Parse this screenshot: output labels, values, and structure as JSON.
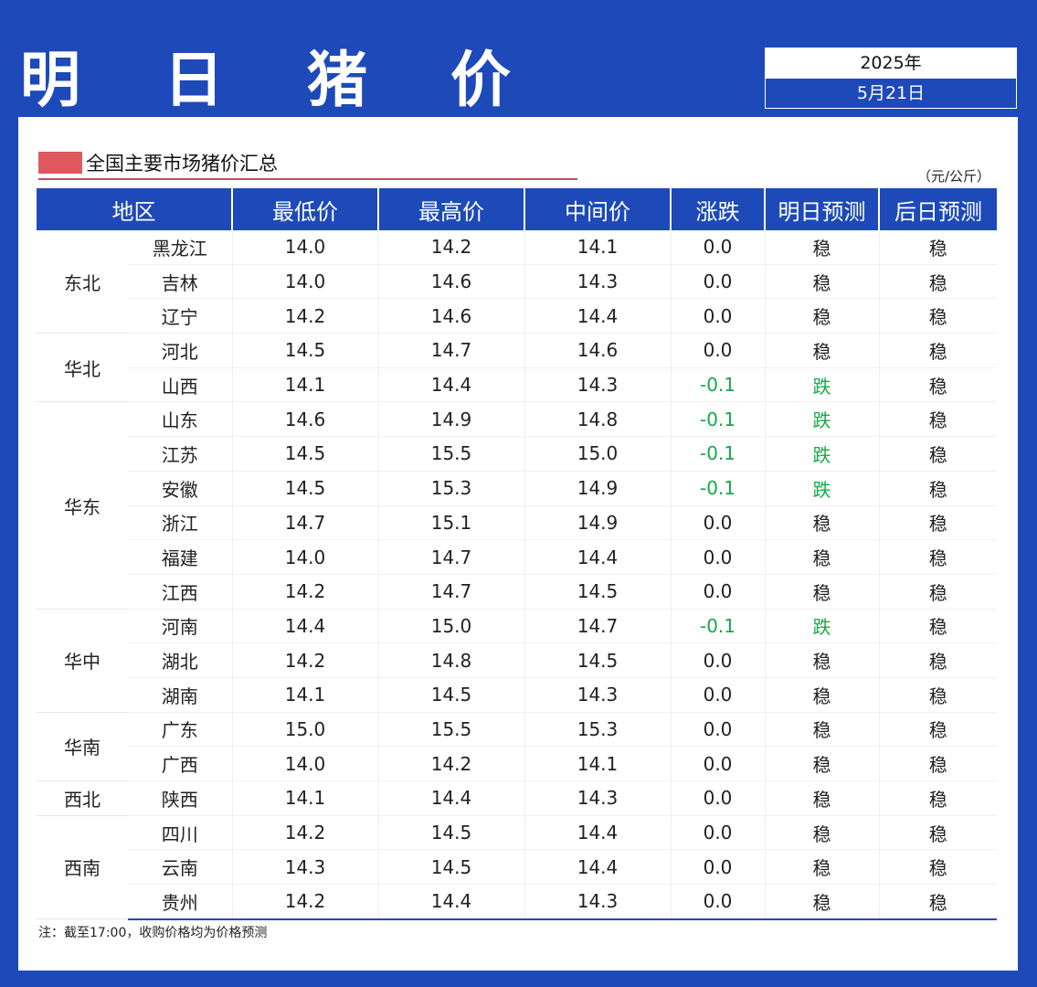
{
  "header": {
    "title": "明 日 猪 价",
    "year": "2025年",
    "date": "5月21日"
  },
  "section": {
    "legend_label": "全国主要市场猪价汇总",
    "unit": "（元/公斤）"
  },
  "colors": {
    "brand_blue": "#1d4ab8",
    "legend_red": "#e0585f",
    "down_green": "#18a84a"
  },
  "table": {
    "headers": {
      "region": "地区",
      "min": "最低价",
      "max": "最高价",
      "mid": "中间价",
      "change": "涨跌",
      "tomorrow": "明日预测",
      "day_after": "后日预测"
    },
    "regions": [
      {
        "name": "东北",
        "rows": [
          {
            "province": "黑龙江",
            "min": "14.0",
            "max": "14.2",
            "mid": "14.1",
            "change": "0.0",
            "tomorrow": "稳",
            "day_after": "稳"
          },
          {
            "province": "吉林",
            "min": "14.0",
            "max": "14.6",
            "mid": "14.3",
            "change": "0.0",
            "tomorrow": "稳",
            "day_after": "稳"
          },
          {
            "province": "辽宁",
            "min": "14.2",
            "max": "14.6",
            "mid": "14.4",
            "change": "0.0",
            "tomorrow": "稳",
            "day_after": "稳"
          }
        ]
      },
      {
        "name": "华北",
        "rows": [
          {
            "province": "河北",
            "min": "14.5",
            "max": "14.7",
            "mid": "14.6",
            "change": "0.0",
            "tomorrow": "稳",
            "day_after": "稳"
          },
          {
            "province": "山西",
            "min": "14.1",
            "max": "14.4",
            "mid": "14.3",
            "change": "-0.1",
            "tomorrow": "跌",
            "day_after": "稳"
          }
        ]
      },
      {
        "name": "华东",
        "rows": [
          {
            "province": "山东",
            "min": "14.6",
            "max": "14.9",
            "mid": "14.8",
            "change": "-0.1",
            "tomorrow": "跌",
            "day_after": "稳"
          },
          {
            "province": "江苏",
            "min": "14.5",
            "max": "15.5",
            "mid": "15.0",
            "change": "-0.1",
            "tomorrow": "跌",
            "day_after": "稳"
          },
          {
            "province": "安徽",
            "min": "14.5",
            "max": "15.3",
            "mid": "14.9",
            "change": "-0.1",
            "tomorrow": "跌",
            "day_after": "稳"
          },
          {
            "province": "浙江",
            "min": "14.7",
            "max": "15.1",
            "mid": "14.9",
            "change": "0.0",
            "tomorrow": "稳",
            "day_after": "稳"
          },
          {
            "province": "福建",
            "min": "14.0",
            "max": "14.7",
            "mid": "14.4",
            "change": "0.0",
            "tomorrow": "稳",
            "day_after": "稳"
          },
          {
            "province": "江西",
            "min": "14.2",
            "max": "14.7",
            "mid": "14.5",
            "change": "0.0",
            "tomorrow": "稳",
            "day_after": "稳"
          }
        ]
      },
      {
        "name": "华中",
        "rows": [
          {
            "province": "河南",
            "min": "14.4",
            "max": "15.0",
            "mid": "14.7",
            "change": "-0.1",
            "tomorrow": "跌",
            "day_after": "稳"
          },
          {
            "province": "湖北",
            "min": "14.2",
            "max": "14.8",
            "mid": "14.5",
            "change": "0.0",
            "tomorrow": "稳",
            "day_after": "稳"
          },
          {
            "province": "湖南",
            "min": "14.1",
            "max": "14.5",
            "mid": "14.3",
            "change": "0.0",
            "tomorrow": "稳",
            "day_after": "稳"
          }
        ]
      },
      {
        "name": "华南",
        "rows": [
          {
            "province": "广东",
            "min": "15.0",
            "max": "15.5",
            "mid": "15.3",
            "change": "0.0",
            "tomorrow": "稳",
            "day_after": "稳"
          },
          {
            "province": "广西",
            "min": "14.0",
            "max": "14.2",
            "mid": "14.1",
            "change": "0.0",
            "tomorrow": "稳",
            "day_after": "稳"
          }
        ]
      },
      {
        "name": "西北",
        "rows": [
          {
            "province": "陕西",
            "min": "14.1",
            "max": "14.4",
            "mid": "14.3",
            "change": "0.0",
            "tomorrow": "稳",
            "day_after": "稳"
          }
        ]
      },
      {
        "name": "西南",
        "rows": [
          {
            "province": "四川",
            "min": "14.2",
            "max": "14.5",
            "mid": "14.4",
            "change": "0.0",
            "tomorrow": "稳",
            "day_after": "稳"
          },
          {
            "province": "云南",
            "min": "14.3",
            "max": "14.5",
            "mid": "14.4",
            "change": "0.0",
            "tomorrow": "稳",
            "day_after": "稳"
          },
          {
            "province": "贵州",
            "min": "14.2",
            "max": "14.4",
            "mid": "14.3",
            "change": "0.0",
            "tomorrow": "稳",
            "day_after": "稳"
          }
        ]
      }
    ]
  },
  "footer": {
    "note": "注：截至17:00，收购价格均为价格预测"
  }
}
